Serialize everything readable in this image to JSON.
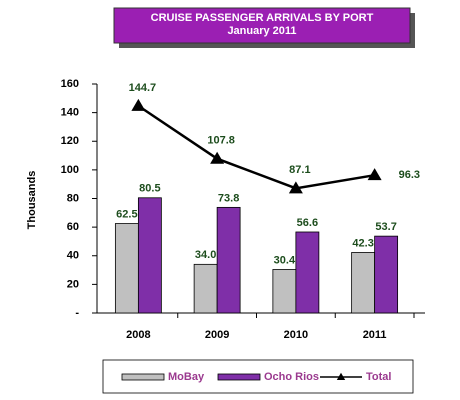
{
  "chart_data": {
    "type": "bar-line",
    "title": "CRUISE PASSENGER ARRIVALS BY PORT",
    "subtitle": "January 2011",
    "y_label": "Thousands",
    "categories": [
      "2008",
      "2009",
      "2010",
      "2011"
    ],
    "series": [
      {
        "name": "MoBay",
        "type": "bar",
        "color": "#c0c0c0",
        "values": [
          62.5,
          34.0,
          30.4,
          42.3
        ],
        "value_labels": [
          "62.5",
          "34.0",
          "30.4",
          "42.3"
        ]
      },
      {
        "name": "Ocho Rios",
        "type": "bar",
        "color": "#7f2fa8",
        "values": [
          80.5,
          73.8,
          56.6,
          53.7
        ],
        "value_labels": [
          "80.5",
          "73.8",
          "56.6",
          "53.7"
        ]
      },
      {
        "name": "Total",
        "type": "line",
        "color": "#000000",
        "values": [
          144.7,
          107.8,
          87.1,
          96.3
        ],
        "value_labels": [
          "144.7",
          "107.8",
          "87.1",
          "96.3"
        ]
      }
    ],
    "ylim": [
      0,
      160
    ],
    "yticks": [
      {
        "value": 0,
        "label": "-"
      },
      20,
      40,
      60,
      80,
      100,
      120,
      140,
      160
    ],
    "legend": "bottom"
  }
}
